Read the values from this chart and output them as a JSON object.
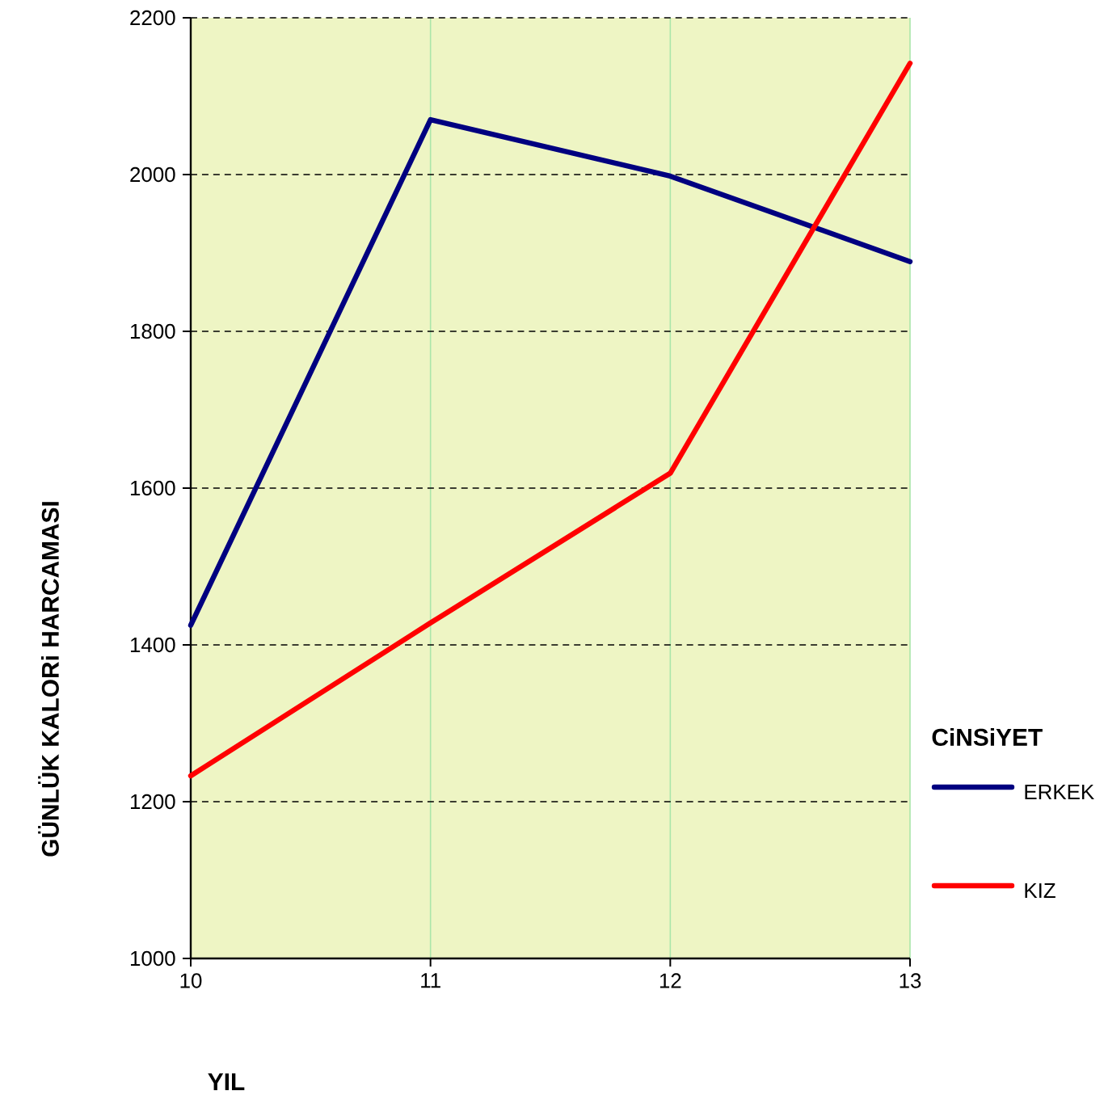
{
  "chart_data": {
    "type": "line",
    "xlabel": "YIL",
    "ylabel": "GÜNLÜK KALORi HARCAMASI",
    "legend_title": "CiNSiYET",
    "x": [
      10,
      11,
      12,
      13
    ],
    "series": [
      {
        "name": "ERKEK",
        "color": "#000080",
        "values": [
          1425,
          2070,
          1998,
          1889
        ]
      },
      {
        "name": "KIZ",
        "color": "#ff0000",
        "values": [
          1233,
          1428,
          1619,
          2142
        ]
      }
    ],
    "xlim": [
      10,
      13
    ],
    "ylim": [
      1000,
      2200
    ],
    "xticks": [
      10,
      11,
      12,
      13
    ],
    "yticks": [
      1000,
      1200,
      1400,
      1600,
      1800,
      2000,
      2200
    ],
    "grid": true,
    "legend": "right",
    "marker": "none",
    "line_style": "solid"
  }
}
